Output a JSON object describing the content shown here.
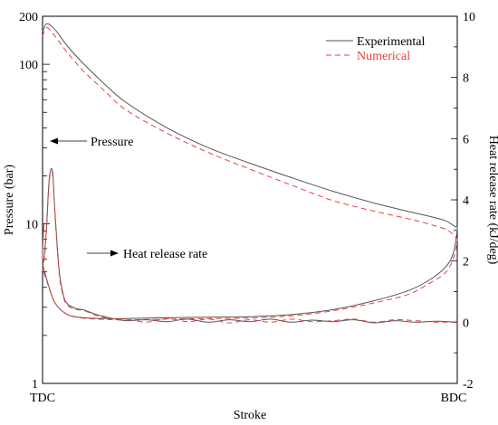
{
  "chart_data": {
    "type": "line",
    "xlabel": "Stroke",
    "ylabel_left": "Pressure (bar)",
    "ylabel_right": "Heat release rate (kJ/deg)",
    "x_tick_labels": [
      "TDC",
      "BDC"
    ],
    "left_axis": {
      "scale": "log",
      "ylim": [
        1,
        200
      ],
      "tick_labels": [
        "1",
        "10",
        "100",
        "200"
      ]
    },
    "right_axis": {
      "scale": "linear",
      "ylim": [
        -2,
        10
      ],
      "tick_labels": [
        "-2",
        "0",
        "2",
        "4",
        "6",
        "8",
        "10"
      ]
    },
    "legend": {
      "placement": "top-right",
      "entries": [
        "Experimental",
        "Numerical"
      ]
    },
    "annotations": [
      "Pressure",
      "Heat release rate"
    ],
    "colors": {
      "experimental": "#555555",
      "numerical": "#e8413c"
    },
    "x_domain": [
      0,
      1
    ],
    "series": [
      {
        "name": "Experimental",
        "quantity": "pressure",
        "axis": "left",
        "x": [
          0,
          0.01,
          0.03,
          0.06,
          0.1,
          0.15,
          0.2,
          0.3,
          0.4,
          0.5,
          0.6,
          0.7,
          0.8,
          0.88,
          0.93,
          0.97,
          0.985,
          0.995,
          1,
          0.99,
          0.97,
          0.93,
          0.88,
          0.8,
          0.7,
          0.6,
          0.5,
          0.4,
          0.3,
          0.2,
          0.15,
          0.1,
          0.06,
          0.03,
          0.01,
          0,
          0.003
        ],
        "y": [
          160,
          180,
          165,
          130,
          100,
          75,
          58,
          40,
          30,
          24,
          19.5,
          16,
          13.5,
          12,
          11.2,
          10.5,
          10,
          9.6,
          9.3,
          6.5,
          5.3,
          4.4,
          3.8,
          3.3,
          2.9,
          2.7,
          2.62,
          2.6,
          2.58,
          2.55,
          2.55,
          2.58,
          2.7,
          3.2,
          4.5,
          6,
          10
        ]
      },
      {
        "name": "Numerical",
        "quantity": "pressure",
        "axis": "left",
        "x": [
          0,
          0.01,
          0.03,
          0.06,
          0.1,
          0.15,
          0.2,
          0.3,
          0.4,
          0.5,
          0.6,
          0.7,
          0.8,
          0.88,
          0.93,
          0.97,
          0.985,
          0.995,
          1,
          0.99,
          0.97,
          0.93,
          0.88,
          0.8,
          0.7,
          0.6,
          0.5,
          0.4,
          0.3,
          0.2,
          0.15,
          0.1,
          0.06,
          0.03,
          0.01,
          0,
          0.003
        ],
        "y": [
          150,
          170,
          150,
          118,
          90,
          68,
          52,
          37,
          28,
          22,
          17.5,
          14,
          12,
          10.8,
          10,
          9.3,
          8.8,
          8.3,
          7.8,
          6,
          4.9,
          4.2,
          3.6,
          3.2,
          2.85,
          2.65,
          2.57,
          2.55,
          2.53,
          2.5,
          2.52,
          2.56,
          2.7,
          3.2,
          4.4,
          5.6,
          9.5
        ]
      },
      {
        "name": "Experimental",
        "quantity": "heat release rate",
        "axis": "right",
        "x": [
          0,
          0.005,
          0.01,
          0.015,
          0.02,
          0.025,
          0.03,
          0.04,
          0.05,
          0.06,
          0.08,
          0.1,
          0.13,
          0.16,
          0.2,
          0.25,
          0.3,
          0.35,
          0.4,
          0.45,
          0.5,
          0.55,
          0.6,
          0.65,
          0.7,
          0.75,
          0.8,
          0.85,
          0.9,
          0.95,
          1
        ],
        "y": [
          1.8,
          2.3,
          3.2,
          4.5,
          5.0,
          4.8,
          3.6,
          1.7,
          0.9,
          0.6,
          0.45,
          0.4,
          0.25,
          0.15,
          0.05,
          0.08,
          0.02,
          0.1,
          0.0,
          0.08,
          0.02,
          0.1,
          0.0,
          0.07,
          0.02,
          0.08,
          -0.02,
          0.05,
          0.0,
          0.03,
          0.0
        ]
      },
      {
        "name": "Numerical",
        "quantity": "heat release rate",
        "axis": "right",
        "x": [
          0,
          0.005,
          0.01,
          0.015,
          0.02,
          0.025,
          0.03,
          0.04,
          0.05,
          0.06,
          0.08,
          0.1,
          0.13,
          0.16,
          0.2,
          0.25,
          0.3,
          0.35,
          0.4,
          0.45,
          0.5,
          0.55,
          0.6,
          0.65,
          0.7,
          0.75,
          0.8,
          0.85,
          0.9,
          0.95,
          1
        ],
        "y": [
          1.7,
          2.2,
          3.1,
          4.4,
          4.9,
          4.7,
          3.5,
          1.6,
          0.85,
          0.55,
          0.42,
          0.38,
          0.22,
          0.12,
          0.1,
          0.0,
          0.12,
          0.02,
          0.1,
          -0.02,
          0.08,
          0.0,
          0.1,
          0.02,
          0.05,
          0.1,
          0.0,
          0.08,
          0.05,
          0.0,
          0.02
        ]
      }
    ]
  }
}
